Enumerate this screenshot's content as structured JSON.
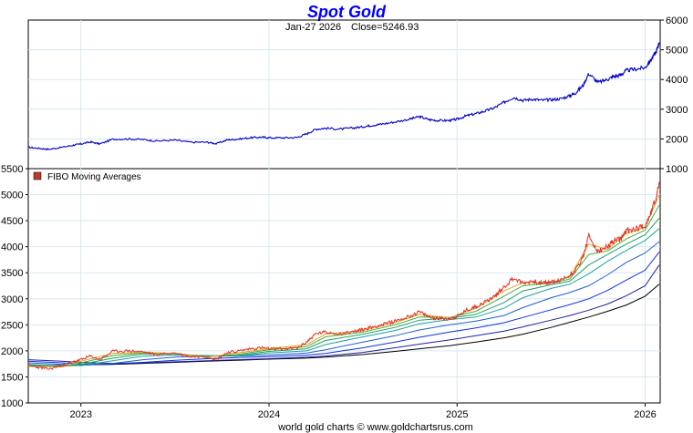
{
  "chart_data": [
    {
      "type": "line",
      "panel": "price",
      "title": "Spot Gold",
      "subtitle_date": "Jan-27  2026",
      "subtitle_close": "Close=5246.93",
      "y_axis_side": "right",
      "ylim": [
        1000,
        6000
      ],
      "yticks": [
        1000,
        2000,
        3000,
        4000,
        5000,
        6000
      ],
      "xlim": [
        2022.72,
        2026.08
      ],
      "series": [
        {
          "name": "Spot Gold",
          "color": "#0000c0",
          "x": [
            2022.72,
            2022.78,
            2022.83,
            2022.9,
            2022.96,
            2023.0,
            2023.05,
            2023.1,
            2023.17,
            2023.25,
            2023.33,
            2023.4,
            2023.5,
            2023.58,
            2023.67,
            2023.72,
            2023.78,
            2023.83,
            2023.9,
            2023.96,
            2024.0,
            2024.08,
            2024.15,
            2024.2,
            2024.25,
            2024.3,
            2024.38,
            2024.45,
            2024.5,
            2024.55,
            2024.6,
            2024.67,
            2024.75,
            2024.8,
            2024.85,
            2024.9,
            2024.96,
            2025.0,
            2025.05,
            2025.1,
            2025.15,
            2025.2,
            2025.25,
            2025.3,
            2025.35,
            2025.4,
            2025.45,
            2025.5,
            2025.55,
            2025.6,
            2025.63,
            2025.67,
            2025.7,
            2025.75,
            2025.8,
            2025.83,
            2025.87,
            2025.9,
            2025.95,
            2026.0,
            2026.03,
            2026.06,
            2026.075
          ],
          "y": [
            1720,
            1680,
            1650,
            1720,
            1790,
            1830,
            1900,
            1830,
            1990,
            2000,
            1980,
            1930,
            1960,
            1890,
            1890,
            1840,
            1970,
            1990,
            2040,
            2060,
            2040,
            2040,
            2050,
            2170,
            2330,
            2360,
            2330,
            2370,
            2410,
            2460,
            2500,
            2570,
            2670,
            2750,
            2650,
            2620,
            2620,
            2660,
            2780,
            2850,
            2940,
            3050,
            3230,
            3400,
            3300,
            3340,
            3300,
            3320,
            3350,
            3450,
            3550,
            3800,
            4200,
            3900,
            4000,
            4100,
            4150,
            4300,
            4350,
            4400,
            4650,
            4950,
            5247
          ]
        }
      ]
    },
    {
      "type": "line",
      "panel": "fibo",
      "legend": "FIBO  Moving  Averages",
      "legend_color": "#c0392b",
      "y_axis_side": "left",
      "ylim": [
        1000,
        5500
      ],
      "yticks": [
        1000,
        1500,
        2000,
        2500,
        3000,
        3500,
        4000,
        4500,
        5000,
        5500
      ],
      "xlim": [
        2022.72,
        2026.08
      ],
      "x_ticks": [
        "2023",
        "2024",
        "2025",
        "2026"
      ],
      "x_tick_values": [
        2023.0,
        2024.0,
        2025.0,
        2026.0
      ],
      "series": [
        {
          "name": "Price",
          "color": "#e03020",
          "x": [
            2022.72,
            2022.78,
            2022.83,
            2022.9,
            2022.96,
            2023.0,
            2023.05,
            2023.1,
            2023.17,
            2023.25,
            2023.33,
            2023.4,
            2023.5,
            2023.58,
            2023.67,
            2023.72,
            2023.78,
            2023.83,
            2023.9,
            2023.96,
            2024.0,
            2024.08,
            2024.15,
            2024.2,
            2024.25,
            2024.3,
            2024.38,
            2024.45,
            2024.5,
            2024.55,
            2024.6,
            2024.67,
            2024.75,
            2024.8,
            2024.85,
            2024.9,
            2024.96,
            2025.0,
            2025.05,
            2025.1,
            2025.15,
            2025.2,
            2025.25,
            2025.3,
            2025.35,
            2025.4,
            2025.45,
            2025.5,
            2025.55,
            2025.6,
            2025.63,
            2025.67,
            2025.7,
            2025.75,
            2025.8,
            2025.83,
            2025.87,
            2025.9,
            2025.95,
            2026.0,
            2026.03,
            2026.06,
            2026.075
          ],
          "y": [
            1720,
            1680,
            1650,
            1720,
            1790,
            1830,
            1900,
            1830,
            1990,
            2000,
            1980,
            1930,
            1960,
            1890,
            1890,
            1840,
            1970,
            1990,
            2040,
            2060,
            2040,
            2040,
            2050,
            2170,
            2330,
            2360,
            2330,
            2370,
            2410,
            2460,
            2500,
            2570,
            2670,
            2750,
            2650,
            2620,
            2620,
            2660,
            2780,
            2850,
            2940,
            3050,
            3230,
            3400,
            3300,
            3340,
            3300,
            3320,
            3350,
            3450,
            3550,
            3800,
            4200,
            3900,
            4000,
            4100,
            4150,
            4300,
            4350,
            4400,
            4650,
            4950,
            5247
          ]
        },
        {
          "name": "MA-short-1",
          "color": "#e8a020",
          "x": [
            2022.72,
            2022.9,
            2023.0,
            2023.17,
            2023.33,
            2023.5,
            2023.67,
            2023.83,
            2024.0,
            2024.2,
            2024.3,
            2024.5,
            2024.67,
            2024.8,
            2024.96,
            2025.1,
            2025.25,
            2025.35,
            2025.5,
            2025.6,
            2025.7,
            2025.8,
            2025.9,
            2026.0,
            2026.075
          ],
          "y": [
            1710,
            1690,
            1800,
            1950,
            1970,
            1950,
            1880,
            1960,
            2040,
            2120,
            2320,
            2390,
            2540,
            2700,
            2630,
            2820,
            3150,
            3310,
            3310,
            3420,
            4050,
            3950,
            4250,
            4380,
            5000
          ]
        },
        {
          "name": "MA-short-2",
          "color": "#40b040",
          "x": [
            2022.72,
            2022.9,
            2023.0,
            2023.17,
            2023.33,
            2023.5,
            2023.67,
            2023.83,
            2024.0,
            2024.2,
            2024.3,
            2024.5,
            2024.67,
            2024.8,
            2024.96,
            2025.1,
            2025.25,
            2025.35,
            2025.5,
            2025.6,
            2025.7,
            2025.8,
            2025.9,
            2026.0,
            2026.075
          ],
          "y": [
            1700,
            1700,
            1770,
            1910,
            1960,
            1950,
            1890,
            1930,
            2020,
            2080,
            2270,
            2360,
            2500,
            2650,
            2640,
            2760,
            3050,
            3250,
            3300,
            3380,
            3850,
            3920,
            4150,
            4320,
            4800
          ]
        },
        {
          "name": "MA-mid-1",
          "color": "#20a060",
          "x": [
            2022.72,
            2022.9,
            2023.0,
            2023.17,
            2023.33,
            2023.5,
            2023.67,
            2023.83,
            2024.0,
            2024.2,
            2024.3,
            2024.5,
            2024.67,
            2024.8,
            2024.96,
            2025.1,
            2025.25,
            2025.35,
            2025.5,
            2025.6,
            2025.7,
            2025.8,
            2025.9,
            2026.0,
            2026.075
          ],
          "y": [
            1720,
            1700,
            1740,
            1860,
            1940,
            1940,
            1900,
            1910,
            1990,
            2040,
            2200,
            2320,
            2450,
            2590,
            2630,
            2700,
            2930,
            3150,
            3270,
            3340,
            3650,
            3850,
            4050,
            4230,
            4550
          ]
        },
        {
          "name": "MA-mid-2",
          "color": "#20a0a0",
          "x": [
            2022.72,
            2022.9,
            2023.0,
            2023.17,
            2023.33,
            2023.5,
            2023.67,
            2023.83,
            2024.0,
            2024.2,
            2024.3,
            2024.5,
            2024.67,
            2024.8,
            2024.96,
            2025.1,
            2025.25,
            2025.35,
            2025.5,
            2025.6,
            2025.7,
            2025.8,
            2025.9,
            2026.0,
            2026.075
          ],
          "y": [
            1740,
            1710,
            1720,
            1810,
            1900,
            1920,
            1910,
            1900,
            1960,
            2000,
            2120,
            2270,
            2390,
            2520,
            2600,
            2650,
            2820,
            3020,
            3200,
            3280,
            3480,
            3720,
            3930,
            4120,
            4350
          ]
        },
        {
          "name": "MA-long-1",
          "color": "#2060d0",
          "x": [
            2022.72,
            2022.9,
            2023.0,
            2023.17,
            2023.33,
            2023.5,
            2023.67,
            2023.83,
            2024.0,
            2024.2,
            2024.3,
            2024.5,
            2024.67,
            2024.8,
            2024.96,
            2025.1,
            2025.25,
            2025.35,
            2025.5,
            2025.6,
            2025.7,
            2025.8,
            2025.9,
            2026.0,
            2026.075
          ],
          "y": [
            1770,
            1740,
            1720,
            1760,
            1830,
            1880,
            1900,
            1900,
            1920,
            1960,
            2020,
            2170,
            2290,
            2400,
            2500,
            2570,
            2680,
            2830,
            3020,
            3120,
            3250,
            3460,
            3700,
            3880,
            4100
          ]
        },
        {
          "name": "MA-long-2",
          "color": "#1030e0",
          "x": [
            2022.72,
            2022.9,
            2023.0,
            2023.17,
            2023.33,
            2023.5,
            2023.67,
            2023.83,
            2024.0,
            2024.2,
            2024.3,
            2024.5,
            2024.67,
            2024.8,
            2024.96,
            2025.1,
            2025.25,
            2025.35,
            2025.5,
            2025.6,
            2025.7,
            2025.8,
            2025.9,
            2026.0,
            2026.075
          ],
          "y": [
            1800,
            1770,
            1750,
            1750,
            1780,
            1820,
            1850,
            1870,
            1890,
            1920,
            1950,
            2060,
            2170,
            2260,
            2360,
            2440,
            2540,
            2640,
            2790,
            2890,
            3000,
            3160,
            3360,
            3550,
            3900
          ]
        },
        {
          "name": "MA-long-3",
          "color": "#2020a0",
          "x": [
            2022.72,
            2022.9,
            2023.0,
            2023.17,
            2023.33,
            2023.5,
            2023.67,
            2023.83,
            2024.0,
            2024.2,
            2024.3,
            2024.5,
            2024.67,
            2024.8,
            2024.96,
            2025.1,
            2025.25,
            2025.35,
            2025.5,
            2025.6,
            2025.7,
            2025.8,
            2025.9,
            2026.0,
            2026.075
          ],
          "y": [
            1830,
            1800,
            1780,
            1760,
            1770,
            1790,
            1810,
            1830,
            1850,
            1880,
            1900,
            1970,
            2060,
            2130,
            2210,
            2290,
            2380,
            2460,
            2590,
            2680,
            2780,
            2900,
            3060,
            3250,
            3650
          ]
        },
        {
          "name": "MA-longest",
          "color": "#000000",
          "x": [
            2022.72,
            2022.9,
            2023.0,
            2023.17,
            2023.33,
            2023.5,
            2023.67,
            2023.83,
            2024.0,
            2024.2,
            2024.3,
            2024.5,
            2024.67,
            2024.8,
            2024.96,
            2025.1,
            2025.25,
            2025.35,
            2025.5,
            2025.6,
            2025.7,
            2025.8,
            2025.9,
            2026.0,
            2026.075
          ],
          "y": [
            1720,
            1720,
            1730,
            1740,
            1760,
            1780,
            1800,
            1820,
            1840,
            1860,
            1880,
            1930,
            1990,
            2040,
            2100,
            2170,
            2250,
            2320,
            2450,
            2550,
            2650,
            2760,
            2880,
            3050,
            3280
          ]
        }
      ]
    }
  ],
  "footer": "world gold charts © www.goldchartsrus.com"
}
